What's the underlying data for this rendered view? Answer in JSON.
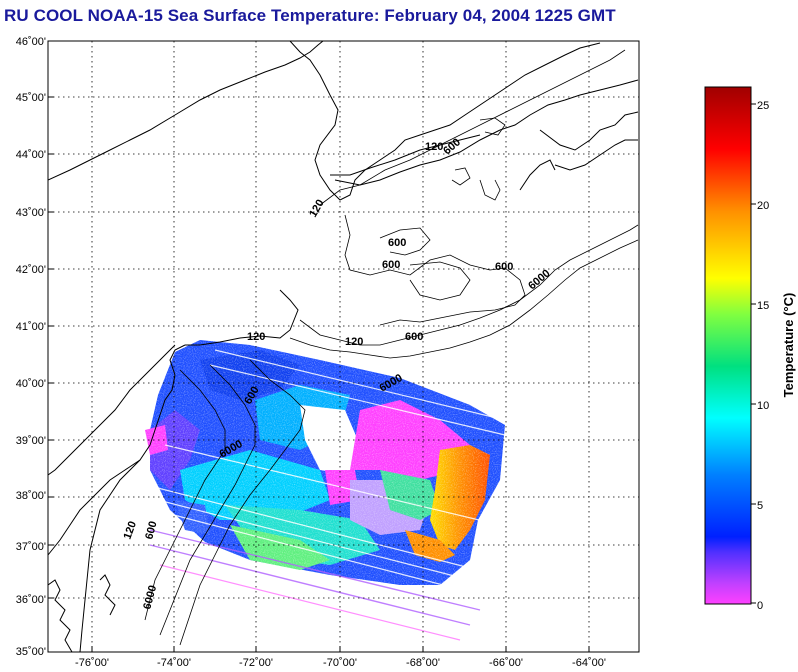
{
  "title": "RU COOL  NOAA-15  Sea Surface Temperature:  February 04, 2004 1225 GMT",
  "map": {
    "lat_labels": [
      "46˚00'",
      "45˚00'",
      "44˚00'",
      "43˚00'",
      "42˚00'",
      "41˚00'",
      "40˚00'",
      "39˚00'",
      "38˚00'",
      "37˚00'",
      "36˚00'",
      "35˚00'"
    ],
    "lon_labels": [
      "-76˚00'",
      "-74˚00'",
      "-72˚00'",
      "-70˚00'",
      "-68˚00'",
      "-66˚00'",
      "-64˚00'"
    ],
    "contour_labels": [
      "120",
      "600",
      "6000"
    ]
  },
  "colorbar": {
    "title": "Temperature (°C)",
    "ticks": [
      "25",
      "20",
      "15",
      "10",
      "5",
      "0"
    ],
    "min": 0,
    "max": 26,
    "colors": [
      "#ff40ff",
      "#a040ff",
      "#3030ff",
      "#0040ff",
      "#00a0ff",
      "#00ffff",
      "#00e080",
      "#80ff40",
      "#ffff00",
      "#ffa000",
      "#ff4000",
      "#ff0000",
      "#b00000"
    ]
  }
}
